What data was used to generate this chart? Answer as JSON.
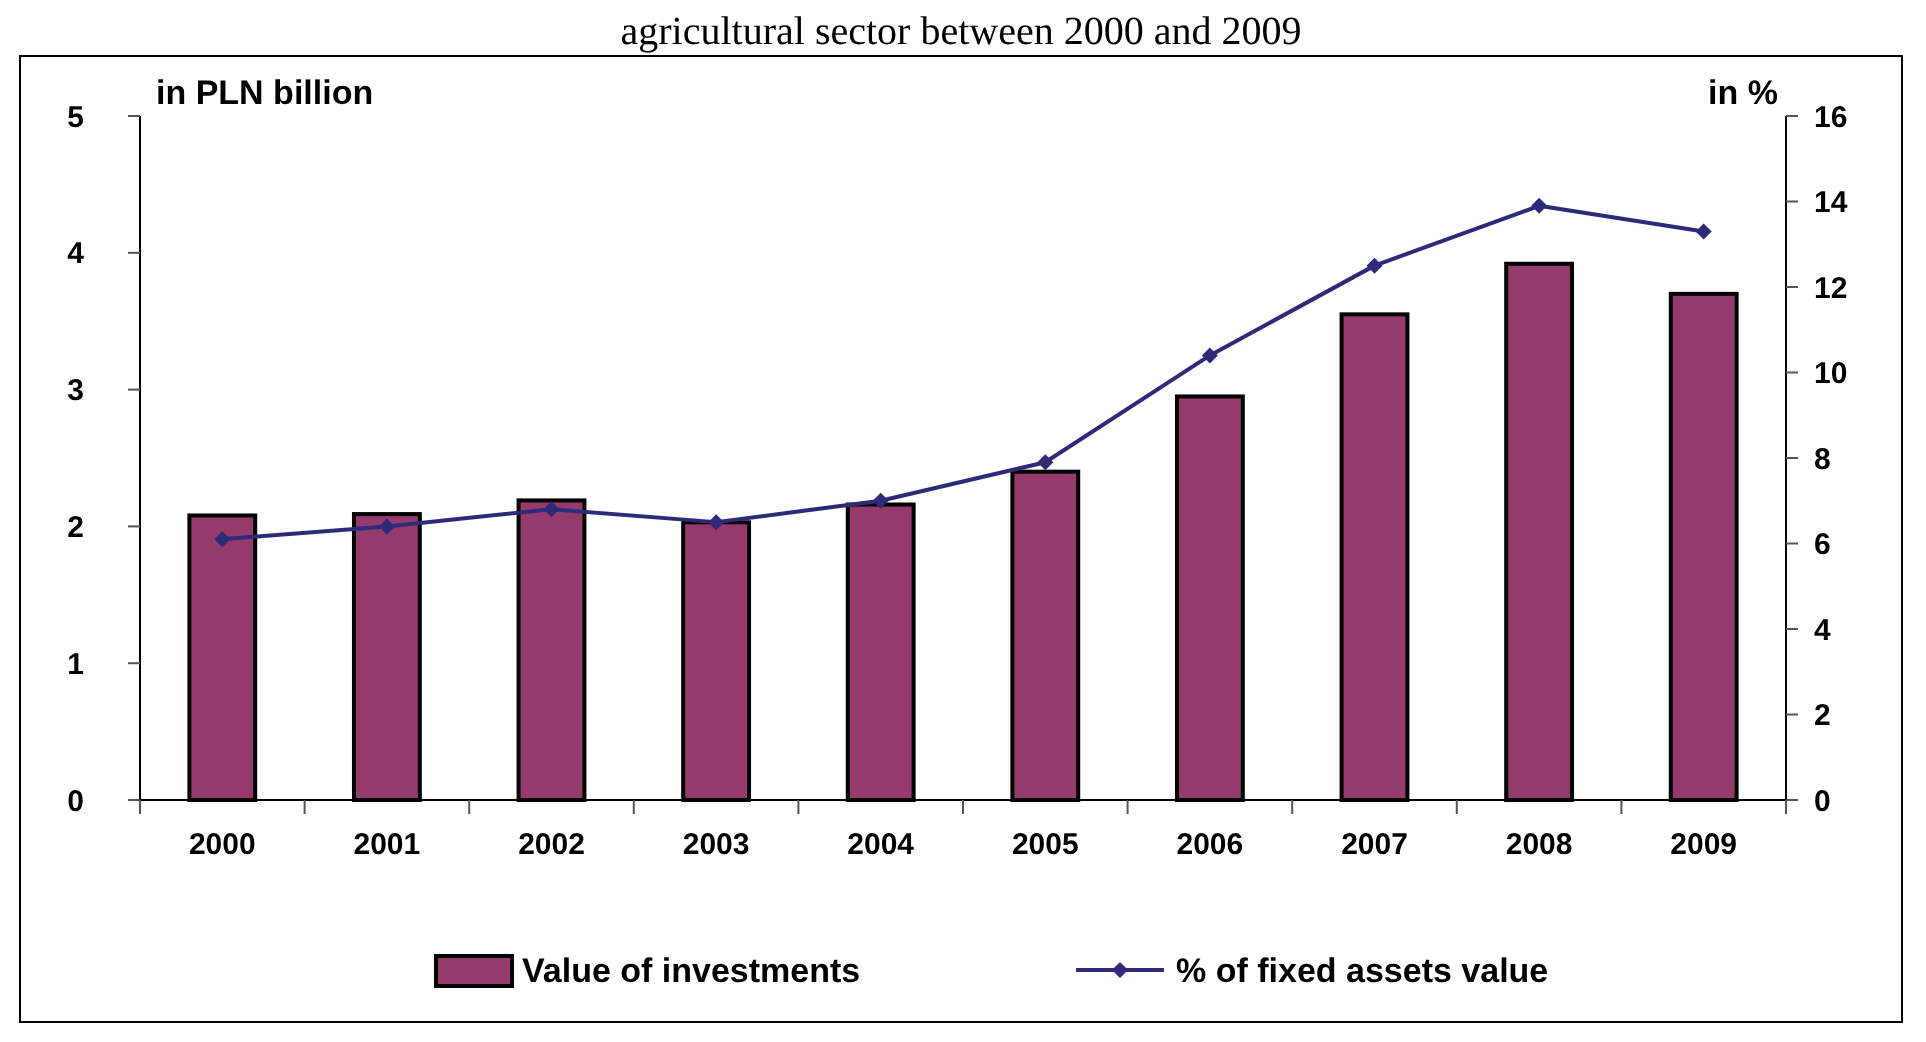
{
  "chart_data": {
    "type": "bar",
    "title": "agricultural sector between 2000 and 2009",
    "ylabel": "in PLN billion",
    "y2label": "in %",
    "categories": [
      "2000",
      "2001",
      "2002",
      "2003",
      "2004",
      "2005",
      "2006",
      "2007",
      "2008",
      "2009"
    ],
    "series": [
      {
        "name": "Value of investments",
        "color": "#943a6c",
        "values": [
          2.08,
          2.09,
          2.19,
          2.03,
          2.16,
          2.4,
          2.95,
          3.55,
          3.92,
          3.7
        ]
      },
      {
        "name": "% of fixed assets value",
        "type": "line",
        "axis": "y2",
        "color": "#2e2a78",
        "marker": "diamond",
        "values": [
          6.1,
          6.4,
          6.8,
          6.5,
          7.0,
          7.9,
          10.4,
          12.5,
          13.9,
          13.3
        ]
      }
    ],
    "ylim": [
      0,
      5
    ],
    "yticks": [
      0,
      1,
      2,
      3,
      4,
      5
    ],
    "y2lim": [
      0,
      16
    ],
    "y2ticks": [
      0,
      2,
      4,
      6,
      8,
      10,
      12,
      14,
      16
    ],
    "legend": "bottom"
  }
}
